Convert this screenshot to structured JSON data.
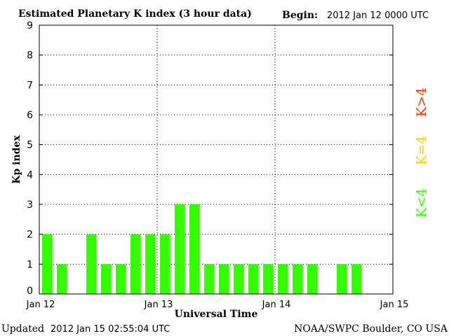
{
  "header": {
    "title": "Estimated Planetary K index (3 hour data)",
    "begin_label": "Begin:",
    "begin_value": "2012 Jan 12 0000 UTC"
  },
  "footer": {
    "updated_label": "Updated",
    "updated_value": "2012 Jan 15 02:55:04 UTC",
    "source": "NOAA/SWPC Boulder, CO USA"
  },
  "legend": {
    "items": [
      {
        "label": "K>4",
        "color": "#ff3300"
      },
      {
        "label": "K=4",
        "color": "#ffcc00"
      },
      {
        "label": "K<4",
        "color": "#33ff00"
      }
    ]
  },
  "chart_data": {
    "type": "bar",
    "ylabel": "Kp index",
    "xlabel": "Universal Time",
    "ylim": [
      0,
      9
    ],
    "yticks": [
      "0",
      "1",
      "2",
      "3",
      "4",
      "5",
      "6",
      "7",
      "8",
      "9"
    ],
    "xlim_days": [
      0,
      3
    ],
    "xticks": [
      {
        "label": "Jan 12",
        "day": 0
      },
      {
        "label": "Jan 13",
        "day": 1
      },
      {
        "label": "Jan 14",
        "day": 2
      },
      {
        "label": "Jan 15",
        "day": 3
      }
    ],
    "interval_hours": 3,
    "values": [
      2,
      1,
      null,
      2,
      1,
      1,
      2,
      2,
      2,
      3,
      3,
      1,
      1,
      1,
      1,
      1,
      1,
      1,
      1,
      null,
      1,
      1,
      null,
      null
    ],
    "bar_color": "#33ff00",
    "grid": "dotted at each day boundary and each integer Kp"
  }
}
